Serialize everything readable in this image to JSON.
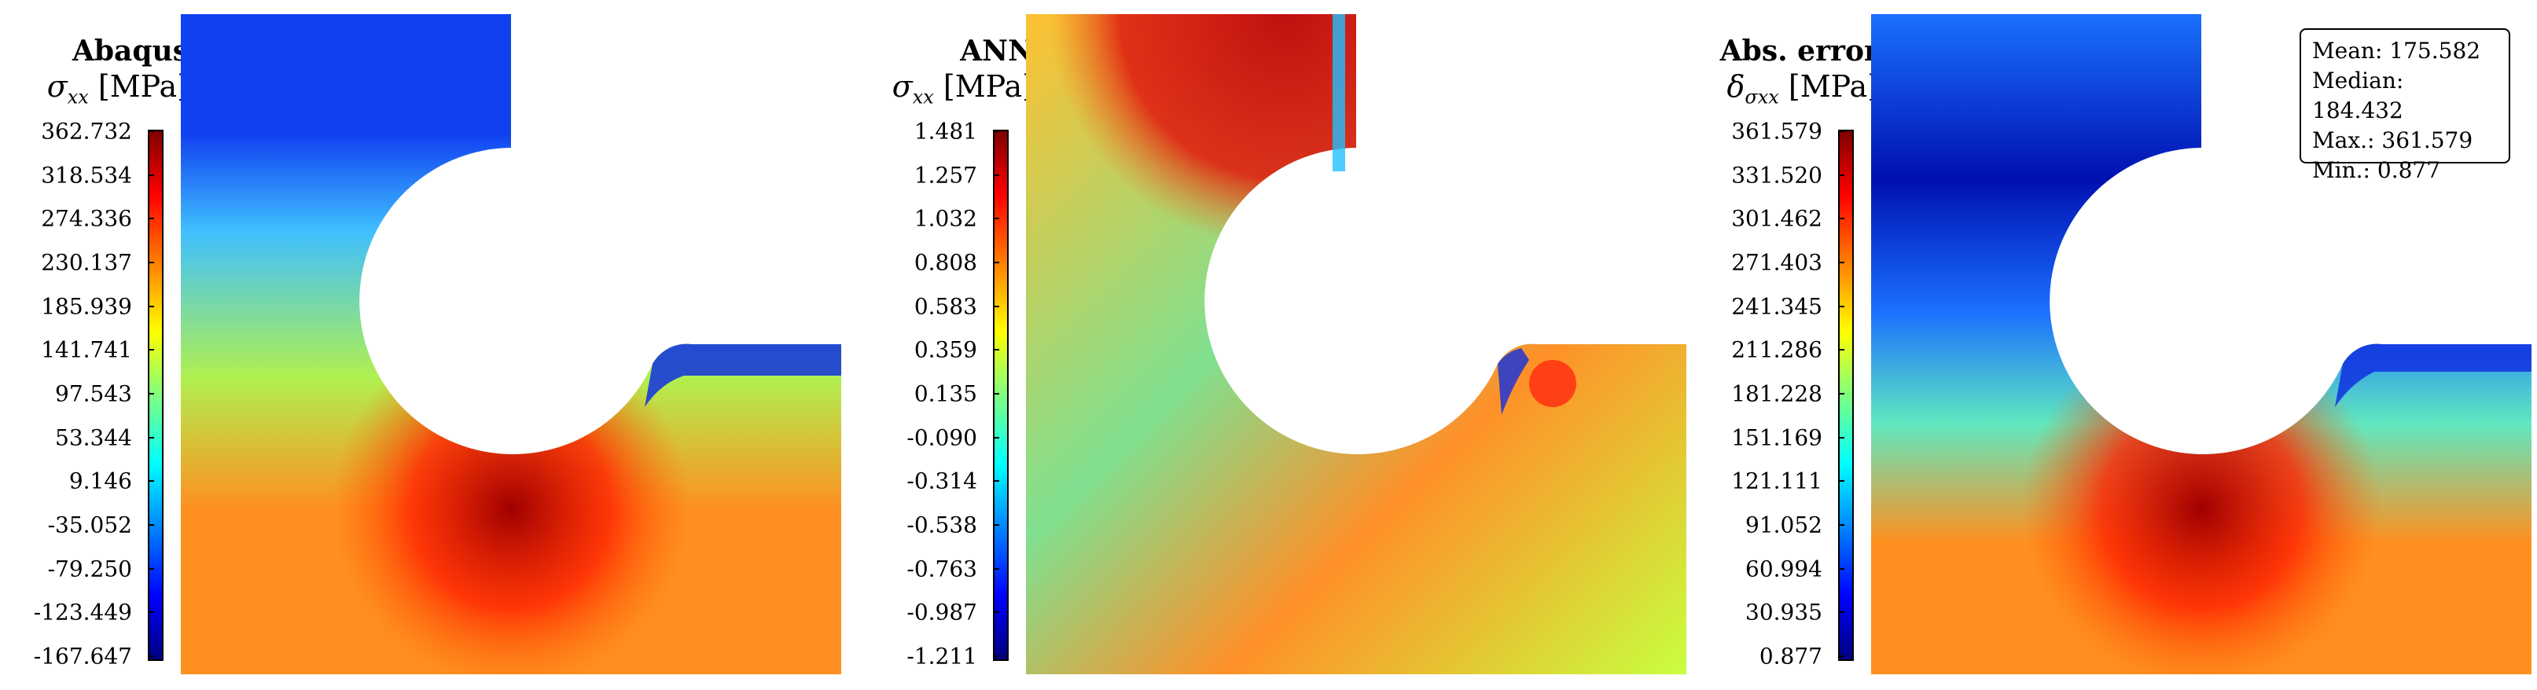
{
  "chart_data": [
    {
      "type": "heatmap",
      "title": "Abaqus",
      "quantity": {
        "symbol": "σ",
        "subscript": "xx",
        "unit": "[MPa]"
      },
      "colorbar_ticks": [
        "362.732",
        "318.534",
        "274.336",
        "230.137",
        "185.939",
        "141.741",
        "97.543",
        "53.344",
        "9.146",
        "-35.052",
        "-79.250",
        "-123.449",
        "-167.647"
      ],
      "colorbar_range": [
        -167.647,
        362.732
      ],
      "colormap": "jet",
      "colors": {
        "low_top_band": "#1040f0",
        "upper_mid": "#40c0ff",
        "middle": "#b0f050",
        "lower": "#ff9020",
        "hotspot": "#a00000"
      }
    },
    {
      "type": "heatmap",
      "title": "ANN",
      "quantity": {
        "symbol": "σ",
        "subscript": "xx",
        "unit": "[MPa]"
      },
      "colorbar_ticks": [
        "1.481",
        "1.257",
        "1.032",
        "0.808",
        "0.583",
        "0.359",
        "0.135",
        "-0.090",
        "-0.314",
        "-0.538",
        "-0.763",
        "-0.987",
        "-1.211"
      ],
      "colorbar_range": [
        -1.211,
        1.481
      ],
      "colormap": "jet",
      "colors": {
        "top_band": "#c01010",
        "middle": "#ffc030",
        "left_mid": "#80e090",
        "lower": "#ff9028",
        "right": "#c8ff40"
      }
    },
    {
      "type": "heatmap",
      "title": "Abs. error",
      "quantity": {
        "symbol": "δ",
        "subscript": "σxx",
        "unit": "[MPa]"
      },
      "colorbar_ticks": [
        "361.579",
        "331.520",
        "301.462",
        "271.403",
        "241.345",
        "211.286",
        "181.228",
        "151.169",
        "121.111",
        "91.052",
        "60.994",
        "30.935",
        "0.877"
      ],
      "colorbar_range": [
        0.877,
        361.579
      ],
      "colormap": "jet",
      "colors": {
        "top_band": "#0010b0",
        "upper": "#1a70ff",
        "middle": "#60e8c0",
        "lower": "#ff9020",
        "hotspot": "#a00000"
      },
      "stats": {
        "mean": "Mean: 175.582",
        "median": "Median: 184.432",
        "max": "Max.: 361.579",
        "min": "Min.: 0.877"
      }
    }
  ]
}
